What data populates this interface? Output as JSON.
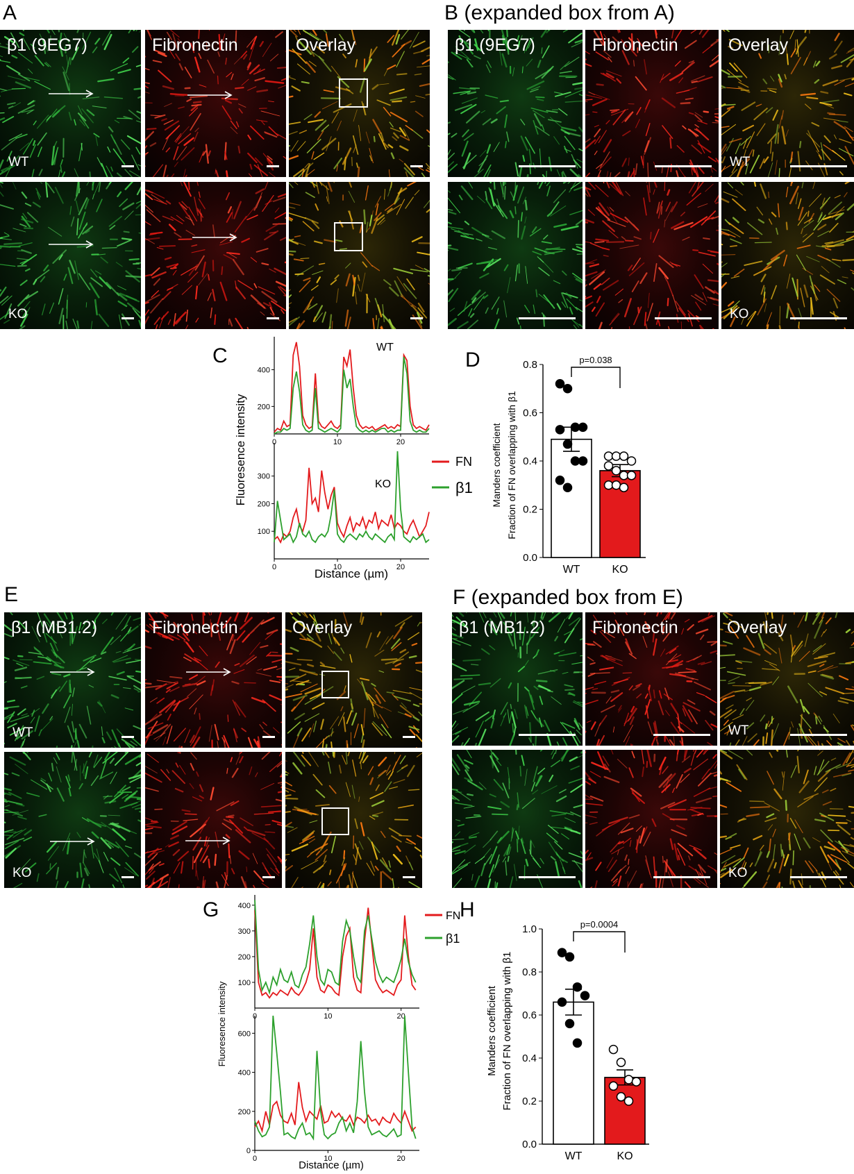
{
  "panels": {
    "A": {
      "label": "A"
    },
    "B": {
      "label": "B (expanded box from A)"
    },
    "C": {
      "label": "C"
    },
    "D": {
      "label": "D"
    },
    "E": {
      "label": "E"
    },
    "F": {
      "label": "F (expanded box from E)"
    },
    "G": {
      "label": "G"
    },
    "H": {
      "label": "H"
    }
  },
  "micrographs": {
    "titles_9eg7": [
      "β1 (9EG7)",
      "Fibronectin",
      "Overlay"
    ],
    "titles_mb12": [
      "β1 (MB1.2)",
      "Fibronectin",
      "Overlay"
    ],
    "row_wt": "WT",
    "row_ko": "KO"
  },
  "colors": {
    "fn": "#e31a1c",
    "beta1": "#2ca02c",
    "ko_bar": "#e31a1c",
    "wt_bar": "#ffffff"
  },
  "chart_data": [
    {
      "id": "C",
      "type": "line",
      "xlabel": "Distance (µm)",
      "ylabel": "Fluoresence intensity",
      "legend": [
        "FN",
        "β1"
      ],
      "subplots": [
        {
          "label": "WT",
          "xlim": [
            0,
            24.5
          ],
          "ylim": [
            50,
            580
          ],
          "xticks": [
            0,
            10,
            20
          ],
          "yticks": [
            200,
            400
          ],
          "x": [
            0,
            0.5,
            1,
            1.5,
            2,
            2.5,
            3,
            3.5,
            4,
            4.5,
            5,
            5.5,
            6,
            6.5,
            7,
            7.5,
            8,
            8.5,
            9,
            9.5,
            10,
            10.5,
            11,
            11.5,
            12,
            12.5,
            13,
            13.5,
            14,
            14.5,
            15,
            15.5,
            16,
            16.5,
            17,
            17.5,
            18,
            18.5,
            19,
            19.5,
            20,
            20.5,
            21,
            21.5,
            22,
            22.5,
            23,
            23.5,
            24,
            24.5
          ],
          "series": [
            {
              "name": "FN",
              "values": [
                60,
                80,
                70,
                120,
                90,
                100,
                480,
                550,
                420,
                150,
                100,
                80,
                90,
                380,
                120,
                90,
                80,
                100,
                120,
                90,
                80,
                100,
                470,
                420,
                510,
                300,
                150,
                100,
                80,
                90,
                80,
                90,
                70,
                80,
                90,
                100,
                80,
                90,
                80,
                100,
                90,
                480,
                450,
                200,
                100,
                80,
                90,
                80,
                70,
                100
              ]
            },
            {
              "name": "β1",
              "values": [
                50,
                60,
                60,
                80,
                70,
                80,
                300,
                390,
                280,
                100,
                70,
                60,
                70,
                300,
                80,
                70,
                60,
                70,
                80,
                70,
                60,
                80,
                400,
                300,
                350,
                200,
                90,
                70,
                60,
                70,
                60,
                70,
                60,
                70,
                80,
                80,
                60,
                70,
                60,
                70,
                70,
                470,
                380,
                120,
                70,
                60,
                70,
                60,
                60,
                80
              ]
            }
          ]
        },
        {
          "label": "KO",
          "xlim": [
            0,
            24.5
          ],
          "ylim": [
            0,
            420
          ],
          "xticks": [
            0,
            10,
            20
          ],
          "yticks": [
            100,
            200,
            300
          ],
          "x": [
            0,
            0.5,
            1,
            1.5,
            2,
            2.5,
            3,
            3.5,
            4,
            4.5,
            5,
            5.5,
            6,
            6.5,
            7,
            7.5,
            8,
            8.5,
            9,
            9.5,
            10,
            10.5,
            11,
            11.5,
            12,
            12.5,
            13,
            13.5,
            14,
            14.5,
            15,
            15.5,
            16,
            16.5,
            17,
            17.5,
            18,
            18.5,
            19,
            19.5,
            20,
            20.5,
            21,
            21.5,
            22,
            22.5,
            23,
            23.5,
            24,
            24.5
          ],
          "series": [
            {
              "name": "FN",
              "values": [
                70,
                80,
                60,
                90,
                80,
                100,
                150,
                180,
                120,
                100,
                140,
                330,
                200,
                220,
                170,
                320,
                240,
                180,
                230,
                260,
                130,
                100,
                80,
                120,
                150,
                100,
                130,
                120,
                150,
                110,
                140,
                130,
                170,
                110,
                140,
                130,
                120,
                160,
                110,
                130,
                120,
                100,
                90,
                120,
                140,
                110,
                80,
                100,
                120,
                170
              ]
            },
            {
              "name": "β1",
              "values": [
                60,
                210,
                140,
                70,
                80,
                90,
                60,
                80,
                130,
                90,
                80,
                100,
                70,
                60,
                80,
                90,
                80,
                100,
                160,
                250,
                90,
                70,
                60,
                80,
                90,
                80,
                70,
                90,
                80,
                100,
                80,
                70,
                90,
                80,
                70,
                60,
                80,
                90,
                70,
                390,
                180,
                80,
                70,
                60,
                80,
                70,
                80,
                90,
                60,
                70
              ]
            }
          ]
        }
      ]
    },
    {
      "id": "D",
      "type": "bar",
      "categories": [
        "WT",
        "KO"
      ],
      "values": [
        0.49,
        0.36
      ],
      "errors": [
        0.05,
        0.025
      ],
      "ylabel_lines": [
        "Manders coefficient",
        "Fraction of FN overlapping with β1"
      ],
      "ylim": [
        0,
        0.8
      ],
      "yticks": [
        0.0,
        0.2,
        0.4,
        0.6,
        0.8
      ],
      "ytick_labels": [
        "0.0",
        "0.2",
        "0.4",
        "0.6",
        "0.8"
      ],
      "points": {
        "WT": [
          0.72,
          0.7,
          0.54,
          0.54,
          0.53,
          0.47,
          0.4,
          0.4,
          0.32,
          0.29
        ],
        "KO": [
          0.42,
          0.42,
          0.42,
          0.4,
          0.38,
          0.36,
          0.34,
          0.34,
          0.3,
          0.3,
          0.29
        ]
      },
      "significance": "p=0.038"
    },
    {
      "id": "G",
      "type": "line",
      "xlabel": "Distance (µm)",
      "ylabel": "Fluoresence intensity",
      "legend": [
        "FN",
        "β1"
      ],
      "subplots": [
        {
          "xlim": [
            0,
            22.5
          ],
          "ylim": [
            0,
            440
          ],
          "xticks": [
            0,
            10,
            20
          ],
          "yticks": [
            100,
            200,
            300,
            400
          ],
          "x": [
            0,
            0.5,
            1,
            1.5,
            2,
            2.5,
            3,
            3.5,
            4,
            4.5,
            5,
            5.5,
            6,
            6.5,
            7,
            7.5,
            8,
            8.5,
            9,
            9.5,
            10,
            10.5,
            11,
            11.5,
            12,
            12.5,
            13,
            13.5,
            14,
            14.5,
            15,
            15.5,
            16,
            16.5,
            17,
            17.5,
            18,
            18.5,
            19,
            19.5,
            20,
            20.5,
            21,
            21.5,
            22
          ],
          "series": [
            {
              "name": "FN",
              "values": [
                380,
                100,
                50,
                60,
                40,
                60,
                50,
                70,
                60,
                50,
                80,
                60,
                50,
                70,
                100,
                150,
                310,
                120,
                70,
                60,
                90,
                80,
                60,
                50,
                200,
                280,
                310,
                120,
                70,
                60,
                260,
                390,
                250,
                110,
                80,
                60,
                70,
                60,
                50,
                90,
                110,
                360,
                200,
                90,
                70
              ]
            },
            {
              "name": "β1",
              "values": [
                420,
                150,
                70,
                100,
                60,
                120,
                90,
                150,
                110,
                100,
                140,
                90,
                80,
                130,
                160,
                250,
                360,
                200,
                110,
                90,
                150,
                140,
                100,
                90,
                260,
                340,
                300,
                200,
                120,
                100,
                300,
                360,
                270,
                180,
                130,
                100,
                120,
                110,
                100,
                140,
                190,
                270,
                180,
                130,
                100
              ]
            }
          ]
        },
        {
          "xlim": [
            0,
            22.5
          ],
          "ylim": [
            0,
            690
          ],
          "xticks": [
            0,
            10,
            20
          ],
          "yticks": [
            0,
            200,
            400,
            600
          ],
          "x": [
            0,
            0.5,
            1,
            1.5,
            2,
            2.5,
            3,
            3.5,
            4,
            4.5,
            5,
            5.5,
            6,
            6.5,
            7,
            7.5,
            8,
            8.5,
            9,
            9.5,
            10,
            10.5,
            11,
            11.5,
            12,
            12.5,
            13,
            13.5,
            14,
            14.5,
            15,
            15.5,
            16,
            16.5,
            17,
            17.5,
            18,
            18.5,
            19,
            19.5,
            20,
            20.5,
            21,
            21.5,
            22
          ],
          "series": [
            {
              "name": "FN",
              "values": [
                120,
                150,
                100,
                200,
                130,
                230,
                250,
                180,
                150,
                140,
                190,
                130,
                350,
                220,
                150,
                200,
                180,
                160,
                230,
                140,
                150,
                200,
                170,
                190,
                160,
                150,
                180,
                130,
                170,
                160,
                140,
                180,
                150,
                160,
                130,
                170,
                150,
                140,
                190,
                160,
                140,
                200,
                150,
                100,
                120
              ]
            },
            {
              "name": "β1",
              "values": [
                150,
                100,
                70,
                80,
                120,
                690,
                500,
                300,
                80,
                90,
                70,
                60,
                110,
                140,
                80,
                90,
                60,
                510,
                200,
                80,
                60,
                80,
                90,
                140,
                170,
                100,
                140,
                90,
                250,
                560,
                300,
                120,
                80,
                90,
                100,
                80,
                70,
                90,
                110,
                70,
                80,
                690,
                400,
                120,
                60
              ]
            }
          ]
        }
      ]
    },
    {
      "id": "H",
      "type": "bar",
      "categories": [
        "WT",
        "KO"
      ],
      "values": [
        0.66,
        0.31
      ],
      "errors": [
        0.06,
        0.035
      ],
      "ylabel_lines": [
        "Manders coefficient",
        "Fraction of FN overlapping with β1"
      ],
      "ylim": [
        0,
        1.0
      ],
      "yticks": [
        0.0,
        0.2,
        0.4,
        0.6,
        0.8,
        1.0
      ],
      "ytick_labels": [
        "0.0",
        "0.2",
        "0.4",
        "0.6",
        "0.8",
        "1.0"
      ],
      "points": {
        "WT": [
          0.89,
          0.87,
          0.73,
          0.69,
          0.66,
          0.56,
          0.47
        ],
        "KO": [
          0.44,
          0.38,
          0.3,
          0.29,
          0.27,
          0.22,
          0.2
        ]
      },
      "significance": "p=0.0004"
    }
  ]
}
